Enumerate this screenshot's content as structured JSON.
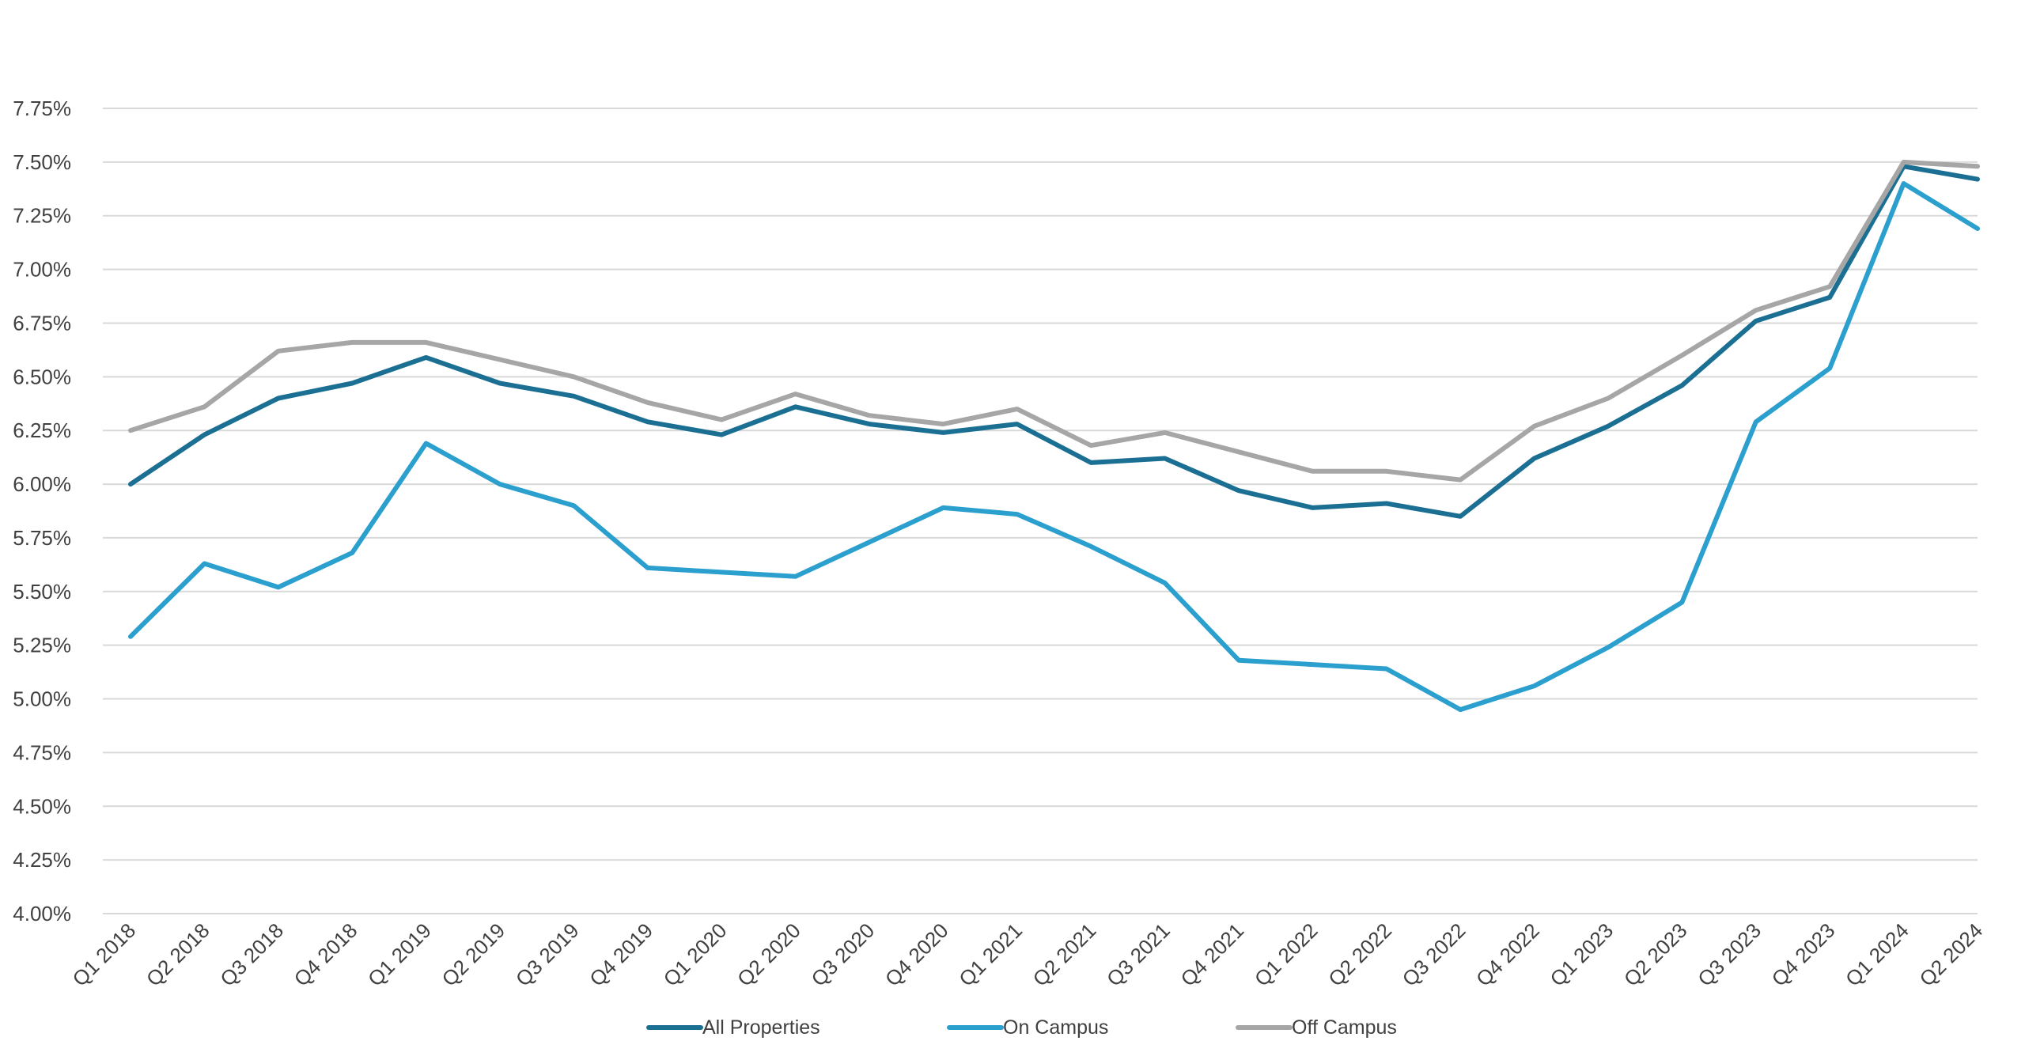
{
  "chart_data": {
    "type": "line",
    "title": "",
    "xlabel": "",
    "ylabel": "",
    "ylim": [
      4.0,
      7.75
    ],
    "y_tick_values": [
      4.0,
      4.25,
      4.5,
      4.75,
      5.0,
      5.25,
      5.5,
      5.75,
      6.0,
      6.25,
      6.5,
      6.75,
      7.0,
      7.25,
      7.5,
      7.75
    ],
    "y_tick_labels": [
      "4.00%",
      "4.25%",
      "4.50%",
      "4.75%",
      "5.00%",
      "5.25%",
      "5.50%",
      "5.75%",
      "6.00%",
      "6.25%",
      "6.50%",
      "6.75%",
      "7.00%",
      "7.25%",
      "7.50%",
      "7.75%"
    ],
    "grid": true,
    "legend_position": "bottom",
    "categories": [
      "Q1 2018",
      "Q2 2018",
      "Q3 2018",
      "Q4 2018",
      "Q1 2019",
      "Q2 2019",
      "Q3 2019",
      "Q4 2019",
      "Q1 2020",
      "Q2 2020",
      "Q3 2020",
      "Q4 2020",
      "Q1 2021",
      "Q2 2021",
      "Q3 2021",
      "Q4 2021",
      "Q1 2022",
      "Q2 2022",
      "Q3 2022",
      "Q4 2022",
      "Q1 2023",
      "Q2 2023",
      "Q3 2023",
      "Q4 2023",
      "Q1 2024",
      "Q2 2024"
    ],
    "series": [
      {
        "name": "All Properties",
        "color": "#1b6f93",
        "values": [
          6.0,
          6.23,
          6.4,
          6.47,
          6.59,
          6.47,
          6.41,
          6.29,
          6.23,
          6.36,
          6.28,
          6.24,
          6.28,
          6.1,
          6.12,
          5.97,
          5.89,
          5.91,
          5.85,
          6.12,
          6.27,
          6.46,
          6.76,
          6.87,
          7.48,
          7.42
        ]
      },
      {
        "name": "On Campus",
        "color": "#2b9fce",
        "values": [
          5.29,
          5.63,
          5.52,
          5.68,
          6.19,
          6.0,
          5.9,
          5.61,
          5.59,
          5.57,
          5.73,
          5.89,
          5.86,
          5.71,
          5.54,
          5.18,
          5.16,
          5.14,
          4.95,
          5.06,
          5.24,
          5.45,
          6.29,
          6.54,
          7.4,
          7.19
        ]
      },
      {
        "name": "Off Campus",
        "color": "#a6a6a6",
        "values": [
          6.25,
          6.36,
          6.62,
          6.66,
          6.66,
          6.58,
          6.5,
          6.38,
          6.3,
          6.42,
          6.32,
          6.28,
          6.35,
          6.18,
          6.24,
          6.15,
          6.06,
          6.06,
          6.02,
          6.27,
          6.4,
          6.6,
          6.81,
          6.92,
          7.5,
          7.48
        ]
      }
    ]
  }
}
